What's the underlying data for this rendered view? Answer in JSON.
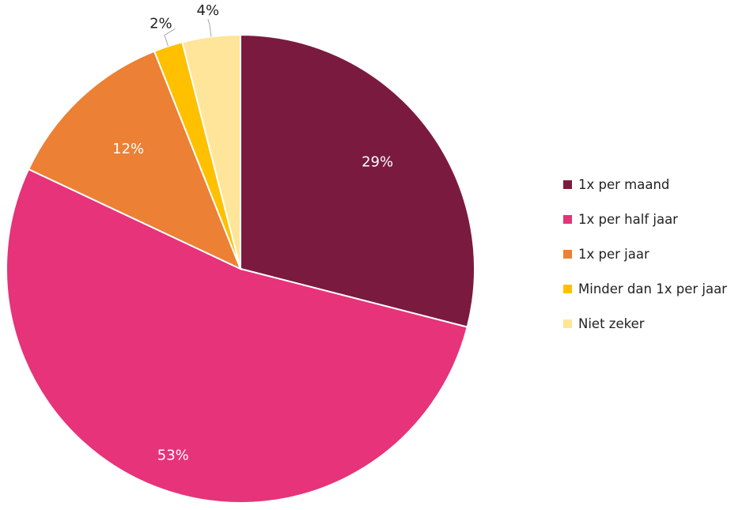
{
  "chart_data": {
    "type": "pie",
    "title": "",
    "slices": [
      {
        "label": "1x per maand",
        "value": 29,
        "value_label": "29%",
        "color": "#7B1A3F",
        "label_color": "#FFFFFF"
      },
      {
        "label": "1x per half jaar",
        "value": 53,
        "value_label": "53%",
        "color": "#E6337A",
        "label_color": "#FFFFFF"
      },
      {
        "label": "1x per jaar",
        "value": 12,
        "value_label": "12%",
        "color": "#EC8034",
        "label_color": "#FFFFFF"
      },
      {
        "label": "Minder dan 1x per jaar",
        "value": 2,
        "value_label": "2%",
        "color": "#FFC000",
        "label_color": "#222222"
      },
      {
        "label": "Niet zeker",
        "value": 4,
        "value_label": "4%",
        "color": "#FFE599",
        "label_color": "#222222"
      }
    ],
    "legend_position": "right",
    "direction": "clockwise"
  }
}
